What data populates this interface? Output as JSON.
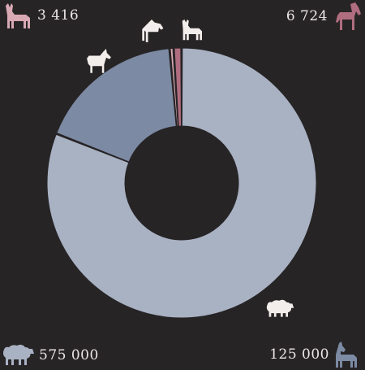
{
  "chart_data": {
    "type": "pie",
    "style": "donut",
    "slices": [
      {
        "icon": "sheep-icon",
        "value": 575000,
        "color": "#a9b2c3"
      },
      {
        "icon": "goat-icon",
        "value": 125000,
        "color": "#7c8aa3"
      },
      {
        "icon": "donkey-icon",
        "value": 3416,
        "color": "#d9a9b4"
      },
      {
        "icon": "horse-icon",
        "value": 6724,
        "color": "#b06d80"
      }
    ],
    "labels": {
      "donkey": "3 416",
      "horse": "6 724",
      "sheep": "575 000",
      "goat": "125 000"
    },
    "colors": {
      "background": "#272426",
      "label_text": "#ece6e8",
      "slice_icon": "#f3eeeb"
    }
  }
}
